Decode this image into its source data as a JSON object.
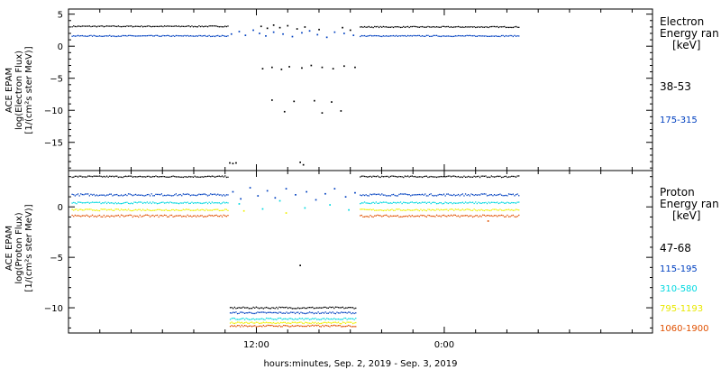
{
  "chart_data": {
    "type": "scatter",
    "x_axis": {
      "label": "hours:minutes, Sep.  2, 2019 - Sep.  3, 2019",
      "ticks": [
        {
          "hour": 12,
          "label": "12:00"
        },
        {
          "hour": 24,
          "label": "0:00"
        }
      ],
      "range_hours": [
        0,
        37.3
      ],
      "minor_tick_every_hours": 2
    },
    "panels": [
      {
        "name": "electron",
        "ylabel": [
          "ACE EPAM",
          "log(Electron Flux)",
          "[1/(cm²s ster MeV)]"
        ],
        "ylim": [
          -19.4,
          5.8
        ],
        "yticks": [
          5,
          0,
          -5,
          -10,
          -15
        ],
        "legend_title": [
          "Electron",
          "Energy ran",
          "[keV]"
        ],
        "series": [
          {
            "name": "38-53",
            "color": "#000000",
            "segments": [
              {
                "x_start": 0.2,
                "x_end": 10.2,
                "y": 3.1,
                "noise": 0.08
              },
              {
                "x_start": 18.6,
                "x_end": 28.8,
                "y": 3.0,
                "noise": 0.08
              }
            ],
            "points": [
              [
                10.3,
                -18.2
              ],
              [
                10.5,
                -18.3
              ],
              [
                10.7,
                -18.2
              ],
              [
                12.3,
                3.1
              ],
              [
                12.7,
                2.8
              ],
              [
                13.1,
                3.3
              ],
              [
                13.5,
                2.9
              ],
              [
                14.0,
                3.2
              ],
              [
                14.6,
                2.7
              ],
              [
                15.1,
                3.0
              ],
              [
                16.0,
                2.6
              ],
              [
                17.5,
                2.9
              ],
              [
                18.0,
                2.5
              ],
              [
                12.4,
                -3.5
              ],
              [
                13.0,
                -3.3
              ],
              [
                13.6,
                -3.6
              ],
              [
                14.1,
                -3.2
              ],
              [
                14.9,
                -3.4
              ],
              [
                15.5,
                -3.0
              ],
              [
                16.2,
                -3.3
              ],
              [
                16.9,
                -3.5
              ],
              [
                17.6,
                -3.1
              ],
              [
                18.3,
                -3.3
              ],
              [
                13.0,
                -8.4
              ],
              [
                13.8,
                -10.2
              ],
              [
                14.4,
                -8.6
              ],
              [
                15.7,
                -8.5
              ],
              [
                16.2,
                -10.4
              ],
              [
                16.8,
                -8.7
              ],
              [
                17.4,
                -10.1
              ],
              [
                14.8,
                -18.1
              ],
              [
                15.0,
                -18.5
              ]
            ]
          },
          {
            "name": "175-315",
            "color": "#0040c0",
            "segments": [
              {
                "x_start": 0.2,
                "x_end": 10.2,
                "y": 1.6,
                "noise": 0.08
              },
              {
                "x_start": 18.6,
                "x_end": 28.8,
                "y": 1.6,
                "noise": 0.08
              }
            ],
            "points": [
              [
                10.4,
                1.9
              ],
              [
                10.9,
                2.3
              ],
              [
                11.3,
                1.7
              ],
              [
                11.8,
                2.5
              ],
              [
                12.2,
                2.0
              ],
              [
                12.6,
                1.6
              ],
              [
                13.1,
                2.2
              ],
              [
                13.7,
                1.9
              ],
              [
                14.3,
                1.5
              ],
              [
                14.9,
                2.1
              ],
              [
                15.4,
                2.4
              ],
              [
                15.9,
                1.8
              ],
              [
                16.5,
                1.4
              ],
              [
                17.0,
                2.2
              ],
              [
                17.6,
                2.0
              ],
              [
                18.2,
                1.7
              ]
            ]
          }
        ]
      },
      {
        "name": "proton",
        "ylabel": [
          "ACE EPAM",
          "log(Proton Flux)",
          "[1/(cm²s ster MeV)]"
        ],
        "ylim": [
          -12.5,
          3.6
        ],
        "yticks": [
          0,
          -5,
          -10
        ],
        "legend_title": [
          "Proton",
          "Energy ran",
          "[keV]"
        ],
        "series": [
          {
            "name": "47-68",
            "color": "#000000",
            "segments": [
              {
                "x_start": 0.2,
                "x_end": 10.2,
                "y": 3.0,
                "noise": 0.07
              },
              {
                "x_start": 18.6,
                "x_end": 28.8,
                "y": 3.0,
                "noise": 0.07
              },
              {
                "x_start": 10.3,
                "x_end": 18.4,
                "y": -10.0,
                "noise": 0.08
              }
            ],
            "points": [
              [
                14.8,
                -5.8
              ]
            ]
          },
          {
            "name": "115-195",
            "color": "#0040c0",
            "segments": [
              {
                "x_start": 0.2,
                "x_end": 10.2,
                "y": 1.2,
                "noise": 0.1
              },
              {
                "x_start": 18.6,
                "x_end": 28.8,
                "y": 1.2,
                "noise": 0.1
              },
              {
                "x_start": 10.3,
                "x_end": 18.4,
                "y": -10.5,
                "noise": 0.08
              }
            ],
            "points": [
              [
                10.5,
                1.5
              ],
              [
                11.0,
                0.8
              ],
              [
                11.6,
                1.9
              ],
              [
                12.1,
                1.1
              ],
              [
                12.7,
                1.6
              ],
              [
                13.2,
                0.9
              ],
              [
                13.9,
                1.8
              ],
              [
                14.5,
                1.2
              ],
              [
                15.2,
                1.5
              ],
              [
                15.8,
                0.7
              ],
              [
                16.4,
                1.3
              ],
              [
                17.0,
                1.8
              ],
              [
                17.7,
                1.0
              ],
              [
                18.3,
                1.4
              ]
            ]
          },
          {
            "name": "310-580",
            "color": "#00d8e0",
            "segments": [
              {
                "x_start": 0.2,
                "x_end": 10.2,
                "y": 0.4,
                "noise": 0.08
              },
              {
                "x_start": 18.6,
                "x_end": 28.8,
                "y": 0.4,
                "noise": 0.08
              },
              {
                "x_start": 10.3,
                "x_end": 18.4,
                "y": -11.1,
                "noise": 0.08
              }
            ],
            "points": [
              [
                10.9,
                0.3
              ],
              [
                12.4,
                -0.2
              ],
              [
                13.5,
                0.6
              ],
              [
                15.1,
                -0.1
              ],
              [
                16.7,
                0.2
              ],
              [
                17.9,
                -0.3
              ]
            ]
          },
          {
            "name": "795-1193",
            "color": "#f0f000",
            "segments": [
              {
                "x_start": 0.2,
                "x_end": 10.2,
                "y": -0.3,
                "noise": 0.08
              },
              {
                "x_start": 18.6,
                "x_end": 28.8,
                "y": -0.3,
                "noise": 0.08
              },
              {
                "x_start": 10.3,
                "x_end": 18.4,
                "y": -11.5,
                "noise": 0.08
              }
            ],
            "points": [
              [
                11.2,
                -0.4
              ],
              [
                13.9,
                -0.6
              ]
            ]
          },
          {
            "name": "1060-1900",
            "color": "#e05000",
            "segments": [
              {
                "x_start": 0.2,
                "x_end": 10.2,
                "y": -0.9,
                "noise": 0.1
              },
              {
                "x_start": 18.6,
                "x_end": 28.8,
                "y": -0.9,
                "noise": 0.1
              },
              {
                "x_start": 10.3,
                "x_end": 18.4,
                "y": -11.8,
                "noise": 0.08
              }
            ],
            "points": [
              [
                26.8,
                -1.4
              ]
            ]
          }
        ]
      }
    ]
  }
}
